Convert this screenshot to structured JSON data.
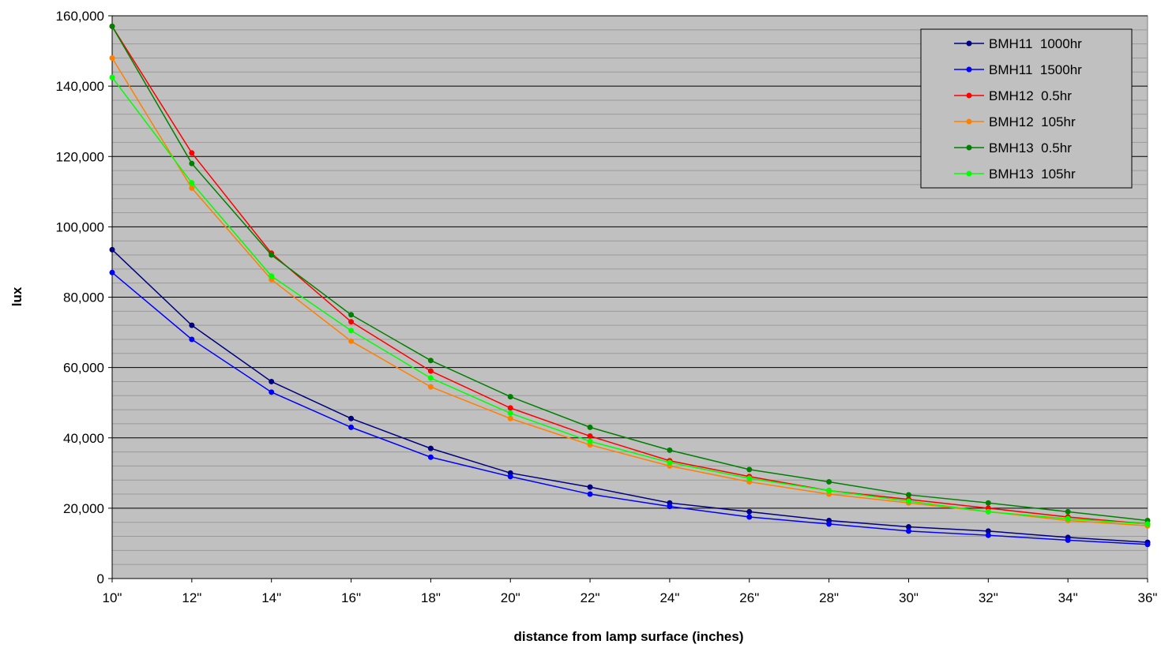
{
  "chart_data": {
    "type": "line",
    "title": "",
    "xlabel": "distance from lamp surface (inches)",
    "ylabel": "lux",
    "categories": [
      "10\"",
      "12\"",
      "14\"",
      "16\"",
      "18\"",
      "20\"",
      "22\"",
      "24\"",
      "26\"",
      "28\"",
      "30\"",
      "32\"",
      "34\"",
      "36\""
    ],
    "ylim": [
      0,
      160000
    ],
    "ytick_labels": [
      "0",
      "20,000",
      "40,000",
      "60,000",
      "80,000",
      "100,000",
      "120,000",
      "140,000",
      "160,000"
    ],
    "grid": true,
    "legend_position": "top-right",
    "plot_background": "#c0c0c0",
    "series": [
      {
        "name": "BMH11  1000hr",
        "color": "#000080",
        "values": [
          93500,
          72000,
          56000,
          45500,
          37000,
          30000,
          26000,
          21500,
          19000,
          16500,
          14700,
          13500,
          11700,
          10300
        ]
      },
      {
        "name": "BMH11  1500hr",
        "color": "#0000ff",
        "values": [
          87000,
          68000,
          53000,
          43000,
          34500,
          29000,
          24000,
          20500,
          17500,
          15500,
          13500,
          12300,
          10900,
          9700
        ]
      },
      {
        "name": "BMH12  0.5hr",
        "color": "#ff0000",
        "values": [
          157000,
          121000,
          92500,
          73000,
          59000,
          48500,
          40500,
          33500,
          29000,
          25000,
          22500,
          20000,
          17500,
          15500
        ]
      },
      {
        "name": "BMH12  105hr",
        "color": "#ff8000",
        "values": [
          148000,
          111000,
          85000,
          67500,
          54500,
          45500,
          38000,
          32000,
          27500,
          24000,
          21500,
          19000,
          16500,
          15000
        ]
      },
      {
        "name": "BMH13  0.5hr",
        "color": "#008000",
        "values": [
          157000,
          118000,
          92000,
          75000,
          62000,
          51700,
          43000,
          36500,
          31000,
          27500,
          23800,
          21500,
          19000,
          16500
        ]
      },
      {
        "name": "BMH13  105hr",
        "color": "#00ff00",
        "values": [
          142500,
          112500,
          86000,
          70500,
          57000,
          47000,
          39000,
          33000,
          28500,
          25000,
          22000,
          19000,
          17000,
          15500
        ]
      }
    ]
  }
}
